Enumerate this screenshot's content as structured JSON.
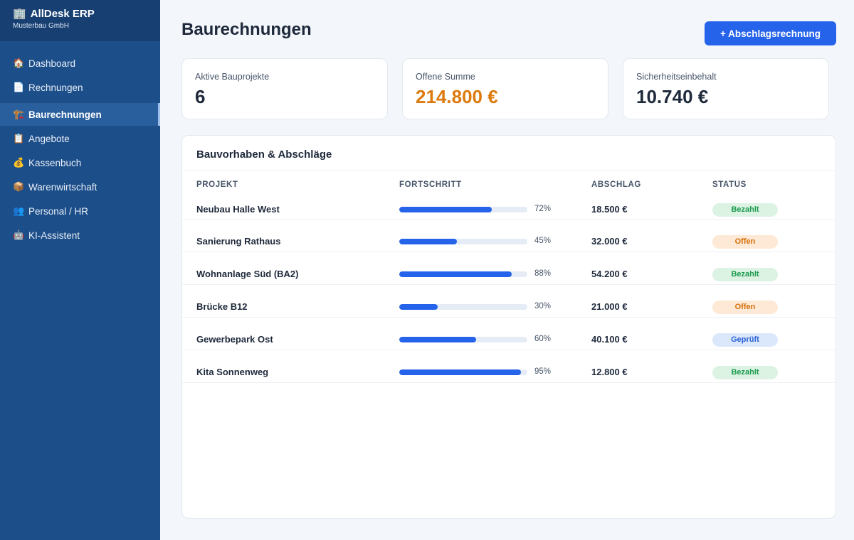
{
  "brand": {
    "title": "AllDesk ERP",
    "subtitle": "Musterbau GmbH",
    "icon": "🏢"
  },
  "nav": [
    {
      "label": "Dashboard",
      "icon": "🏠",
      "active": false
    },
    {
      "label": "Rechnungen",
      "icon": "📄",
      "active": false
    },
    {
      "label": "Baurechnungen",
      "icon": "🏗️",
      "active": true
    },
    {
      "label": "Angebote",
      "icon": "📋",
      "active": false
    },
    {
      "label": "Kassenbuch",
      "icon": "💰",
      "active": false
    },
    {
      "label": "Warenwirtschaft",
      "icon": "📦",
      "active": false
    },
    {
      "label": "Personal / HR",
      "icon": "👥",
      "active": false
    },
    {
      "label": "KI-Assistent",
      "icon": "🤖",
      "active": false
    }
  ],
  "header": {
    "title": "Baurechnungen",
    "action_label": "+ Abschlagsrechnung"
  },
  "kpis": [
    {
      "label": "Aktive Bauprojekte",
      "value": "6",
      "accent": "#1e293b"
    },
    {
      "label": "Offene Summe",
      "value": "214.800 €",
      "accent": "#dd7a0e"
    },
    {
      "label": "Sicherheitseinbehalt",
      "value": "10.740 €",
      "accent": "#1e293b"
    }
  ],
  "table": {
    "title": "Bauvorhaben & Abschläge",
    "columns": [
      "PROJEKT",
      "FORTSCHRITT",
      "ABSCHLAG",
      "STATUS"
    ],
    "rows": [
      {
        "project": "Neubau Halle West",
        "progress": 72,
        "progress_label": "72%",
        "amount": "18.500 €",
        "status": "Bezahlt",
        "status_type": "paid"
      },
      {
        "project": "Sanierung Rathaus",
        "progress": 45,
        "progress_label": "45%",
        "amount": "32.000 €",
        "status": "Offen",
        "status_type": "open"
      },
      {
        "project": "Wohnanlage Süd (BA2)",
        "progress": 88,
        "progress_label": "88%",
        "amount": "54.200 €",
        "status": "Bezahlt",
        "status_type": "paid"
      },
      {
        "project": "Brücke B12",
        "progress": 30,
        "progress_label": "30%",
        "amount": "21.000 €",
        "status": "Offen",
        "status_type": "open"
      },
      {
        "project": "Gewerbepark Ost",
        "progress": 60,
        "progress_label": "60%",
        "amount": "40.100 €",
        "status": "Geprüft",
        "status_type": "checked"
      },
      {
        "project": "Kita Sonnenweg",
        "progress": 95,
        "progress_label": "95%",
        "amount": "12.800 €",
        "status": "Bezahlt",
        "status_type": "paid"
      }
    ]
  },
  "colors": {
    "sidebar": "#1c4e8a",
    "primary": "#2563eb",
    "warning": "#dd7a0e",
    "success": "#1a9a4a"
  }
}
